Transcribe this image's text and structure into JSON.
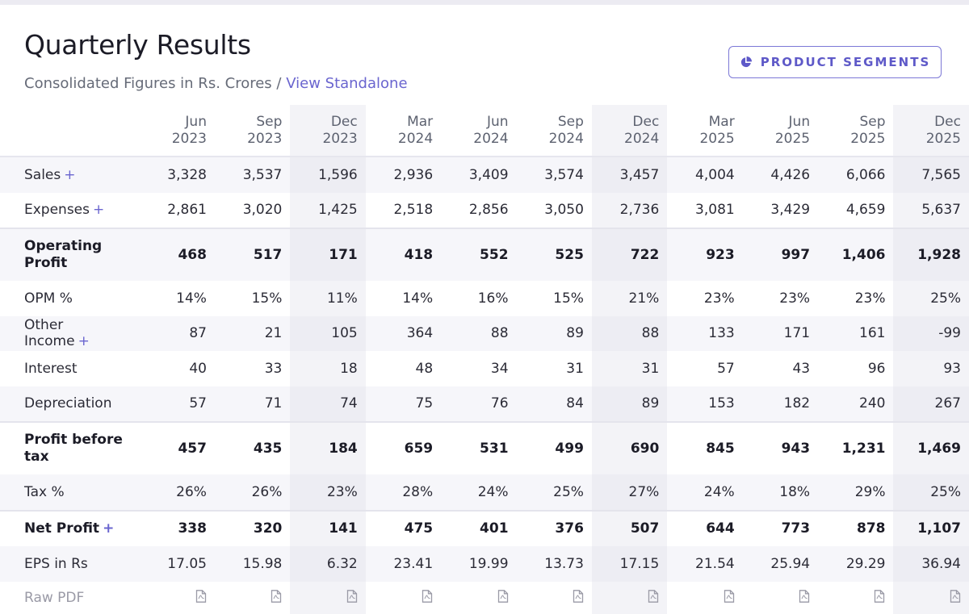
{
  "header": {
    "title": "Quarterly Results",
    "subtitle": "Consolidated Figures in Rs. Crores /",
    "standalone_link": "View Standalone",
    "segments_button": "PRODUCT SEGMENTS"
  },
  "table": {
    "columns": [
      {
        "month": "Jun",
        "year": "2023"
      },
      {
        "month": "Sep",
        "year": "2023"
      },
      {
        "month": "Dec",
        "year": "2023"
      },
      {
        "month": "Mar",
        "year": "2024"
      },
      {
        "month": "Jun",
        "year": "2024"
      },
      {
        "month": "Sep",
        "year": "2024"
      },
      {
        "month": "Dec",
        "year": "2024"
      },
      {
        "month": "Mar",
        "year": "2025"
      },
      {
        "month": "Jun",
        "year": "2025"
      },
      {
        "month": "Sep",
        "year": "2025"
      },
      {
        "month": "Dec",
        "year": "2025"
      }
    ],
    "rows": [
      {
        "label": "Sales",
        "plus": "+",
        "values": [
          "3,328",
          "3,537",
          "1,596",
          "2,936",
          "3,409",
          "3,574",
          "3,457",
          "4,004",
          "4,426",
          "6,066",
          "7,565"
        ]
      },
      {
        "label": "Expenses",
        "plus": "+",
        "values": [
          "2,861",
          "3,020",
          "1,425",
          "2,518",
          "2,856",
          "3,050",
          "2,736",
          "3,081",
          "3,429",
          "4,659",
          "5,637"
        ]
      },
      {
        "label": "Operating Profit",
        "values": [
          "468",
          "517",
          "171",
          "418",
          "552",
          "525",
          "722",
          "923",
          "997",
          "1,406",
          "1,928"
        ]
      },
      {
        "label": "OPM %",
        "values": [
          "14%",
          "15%",
          "11%",
          "14%",
          "16%",
          "15%",
          "21%",
          "23%",
          "23%",
          "23%",
          "25%"
        ]
      },
      {
        "label": "Other Income",
        "plus": "+",
        "values": [
          "87",
          "21",
          "105",
          "364",
          "88",
          "89",
          "88",
          "133",
          "171",
          "161",
          "-99"
        ]
      },
      {
        "label": "Interest",
        "values": [
          "40",
          "33",
          "18",
          "48",
          "34",
          "31",
          "31",
          "57",
          "43",
          "96",
          "93"
        ]
      },
      {
        "label": "Depreciation",
        "values": [
          "57",
          "71",
          "74",
          "75",
          "76",
          "84",
          "89",
          "153",
          "182",
          "240",
          "267"
        ]
      },
      {
        "label": "Profit before tax",
        "values": [
          "457",
          "435",
          "184",
          "659",
          "531",
          "499",
          "690",
          "845",
          "943",
          "1,231",
          "1,469"
        ]
      },
      {
        "label": "Tax %",
        "values": [
          "26%",
          "26%",
          "23%",
          "28%",
          "24%",
          "25%",
          "27%",
          "24%",
          "18%",
          "29%",
          "25%"
        ]
      },
      {
        "label": "Net Profit",
        "plus": "+",
        "values": [
          "338",
          "320",
          "141",
          "475",
          "401",
          "376",
          "507",
          "644",
          "773",
          "878",
          "1,107"
        ]
      },
      {
        "label": "EPS in Rs",
        "values": [
          "17.05",
          "15.98",
          "6.32",
          "23.41",
          "19.99",
          "13.73",
          "17.15",
          "21.54",
          "25.94",
          "29.29",
          "36.94"
        ]
      },
      {
        "label": "Raw PDF",
        "pdf": true
      }
    ]
  },
  "colors": {
    "accent": "#6a65cf",
    "stripe": "#f6f6fa",
    "highlight_column": "#f3f3f7"
  }
}
